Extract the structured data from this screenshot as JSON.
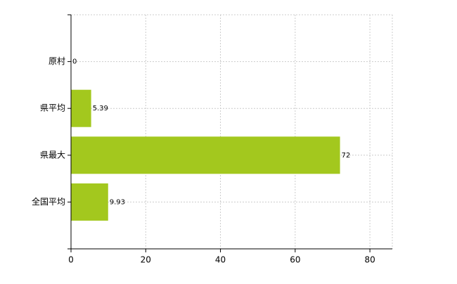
{
  "chart_data": {
    "type": "barh",
    "categories": [
      "原村",
      "県平均",
      "県最大",
      "全国平均"
    ],
    "values": [
      0,
      5.39,
      72,
      9.93
    ],
    "color": "#a3c81e",
    "xlim": [
      0,
      86
    ],
    "xticks": [
      0,
      20,
      40,
      60,
      80
    ],
    "grid": true
  }
}
